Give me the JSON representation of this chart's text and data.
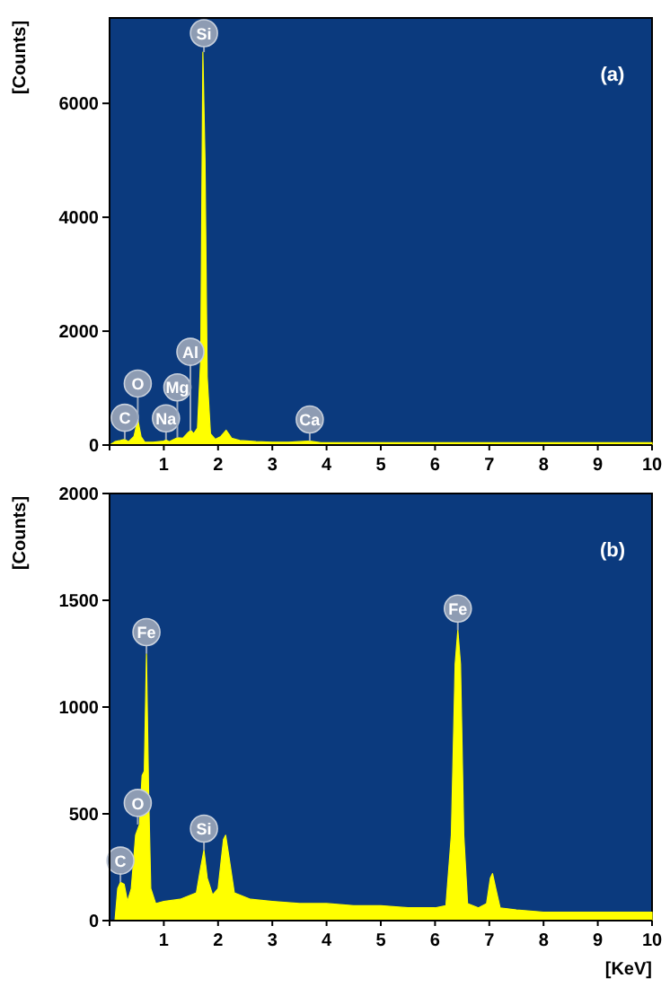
{
  "chart_data": [
    {
      "type": "area",
      "title": "(a)",
      "ylabel": "[Counts]",
      "xlim": [
        0,
        10
      ],
      "ylim": [
        0,
        7500
      ],
      "xticks": [
        {
          "value": 0,
          "label": null
        },
        1,
        2,
        3,
        4,
        5,
        6,
        7,
        8,
        9,
        10
      ],
      "yticks": [
        0,
        2000,
        4000,
        6000
      ],
      "series": [
        {
          "color": "#ffff00",
          "x": [
            0,
            0.1,
            0.2,
            0.28,
            0.35,
            0.45,
            0.52,
            0.58,
            0.65,
            0.8,
            1.0,
            1.04,
            1.1,
            1.25,
            1.35,
            1.45,
            1.5,
            1.55,
            1.62,
            1.68,
            1.72,
            1.76,
            1.8,
            1.86,
            1.95,
            2.05,
            2.15,
            2.25,
            2.4,
            2.7,
            3.0,
            3.3,
            3.5,
            3.69,
            3.9,
            4.5,
            5,
            6,
            7,
            8,
            9,
            10
          ],
          "values": [
            0,
            60,
            80,
            100,
            60,
            150,
            450,
            150,
            50,
            50,
            70,
            90,
            60,
            130,
            120,
            220,
            260,
            200,
            300,
            1500,
            6900,
            5000,
            1200,
            200,
            100,
            150,
            260,
            120,
            80,
            60,
            50,
            50,
            60,
            70,
            40,
            40,
            40,
            40,
            40,
            40,
            40,
            40
          ]
        }
      ],
      "annotations": [
        {
          "text": "C",
          "x": 0.28,
          "y": 100
        },
        {
          "text": "O",
          "x": 0.52,
          "y": 450
        },
        {
          "text": "Na",
          "x": 1.04,
          "y": 90
        },
        {
          "text": "Mg",
          "x": 1.25,
          "y": 130
        },
        {
          "text": "Al",
          "x": 1.49,
          "y": 250
        },
        {
          "text": "Si",
          "x": 1.74,
          "y": 6900
        },
        {
          "text": "Ca",
          "x": 3.69,
          "y": 70
        }
      ]
    },
    {
      "type": "area",
      "title": "(b)",
      "ylabel": "[Counts]",
      "xlabel": "[KeV]",
      "xlim": [
        0,
        10
      ],
      "ylim": [
        0,
        2000
      ],
      "xticks": [
        {
          "value": 0,
          "label": null
        },
        1,
        2,
        3,
        4,
        5,
        6,
        7,
        8,
        9,
        10
      ],
      "yticks": [
        0,
        500,
        1000,
        1500,
        2000
      ],
      "series": [
        {
          "color": "#ffff00",
          "x": [
            0,
            0.1,
            0.15,
            0.2,
            0.27,
            0.33,
            0.4,
            0.48,
            0.55,
            0.6,
            0.64,
            0.68,
            0.72,
            0.76,
            0.85,
            1.0,
            1.3,
            1.6,
            1.68,
            1.74,
            1.8,
            1.9,
            2.0,
            2.1,
            2.14,
            2.2,
            2.3,
            2.6,
            3.0,
            3.5,
            4,
            4.5,
            5,
            5.5,
            6.0,
            6.2,
            6.3,
            6.37,
            6.42,
            6.47,
            6.53,
            6.6,
            6.8,
            6.95,
            7.02,
            7.06,
            7.12,
            7.2,
            7.5,
            8,
            9,
            10
          ],
          "values": [
            0,
            0,
            150,
            180,
            170,
            90,
            150,
            400,
            450,
            680,
            700,
            1250,
            600,
            150,
            80,
            90,
            100,
            130,
            250,
            330,
            200,
            120,
            150,
            380,
            400,
            300,
            130,
            100,
            90,
            80,
            80,
            70,
            70,
            60,
            60,
            70,
            400,
            1200,
            1360,
            1200,
            400,
            80,
            60,
            80,
            200,
            220,
            150,
            60,
            50,
            40,
            40,
            40
          ]
        }
      ],
      "annotations": [
        {
          "text": "C",
          "x": 0.2,
          "y": 180
        },
        {
          "text": "O",
          "x": 0.52,
          "y": 450
        },
        {
          "text": "Fe",
          "x": 0.68,
          "y": 1250
        },
        {
          "text": "Si",
          "x": 1.74,
          "y": 330
        },
        {
          "text": "Fe",
          "x": 6.42,
          "y": 1360
        }
      ]
    }
  ]
}
